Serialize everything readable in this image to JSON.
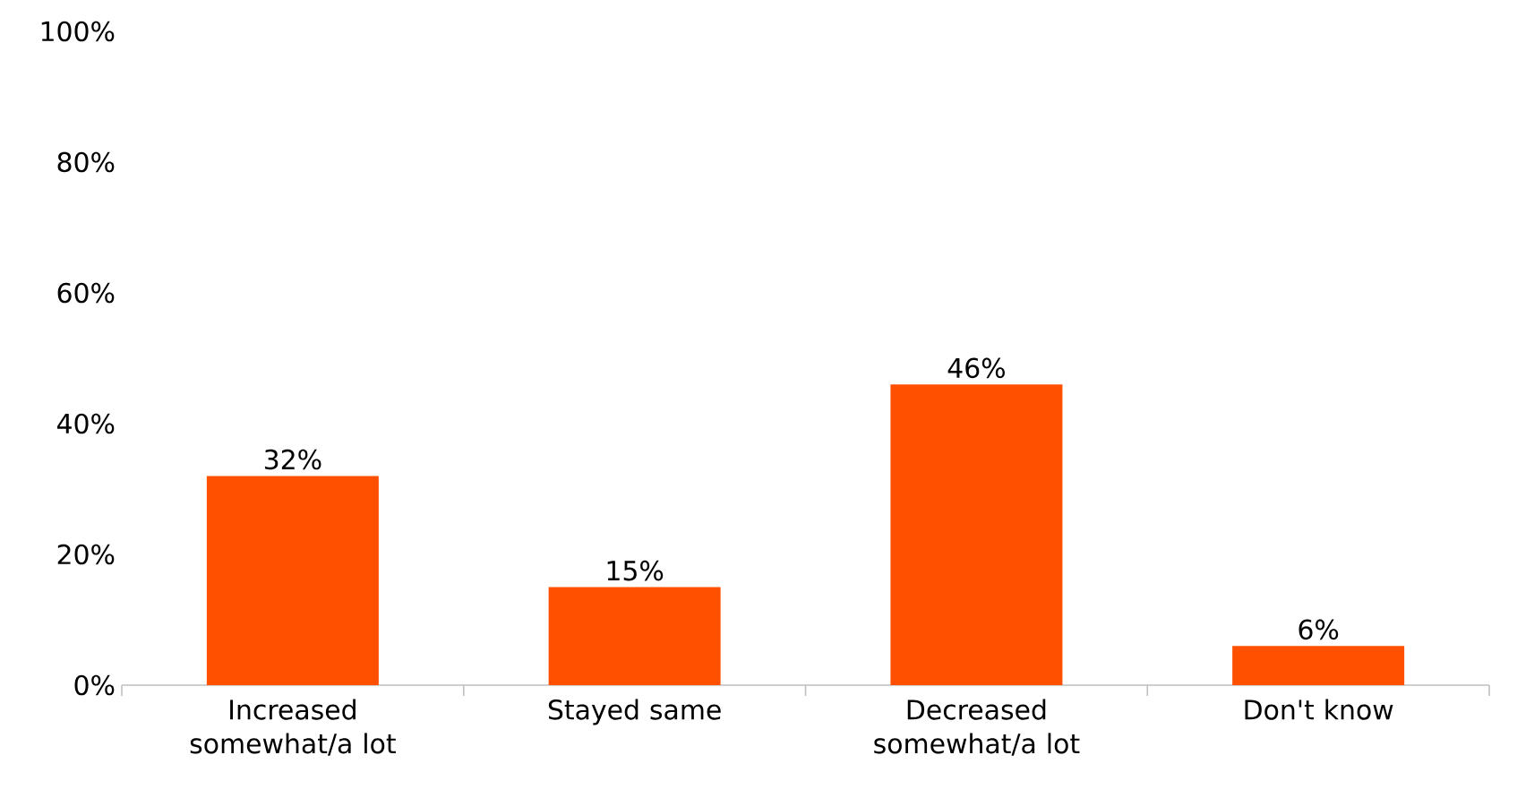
{
  "chart_data": {
    "type": "bar",
    "categories": [
      "Increased somewhat/a lot",
      "Stayed same",
      "Decreased somewhat/a lot",
      "Don't know"
    ],
    "values": [
      32,
      15,
      46,
      6
    ],
    "value_labels": [
      "32%",
      "15%",
      "46%",
      "6%"
    ],
    "color": "#ff5000",
    "ylim": [
      0,
      100
    ],
    "yticks": [
      {
        "value": 0,
        "label": "0%"
      },
      {
        "value": 20,
        "label": "20%"
      },
      {
        "value": 40,
        "label": "40%"
      },
      {
        "value": 60,
        "label": "60%"
      },
      {
        "value": 80,
        "label": "80%"
      },
      {
        "value": 100,
        "label": "100%"
      }
    ],
    "grid": false
  }
}
